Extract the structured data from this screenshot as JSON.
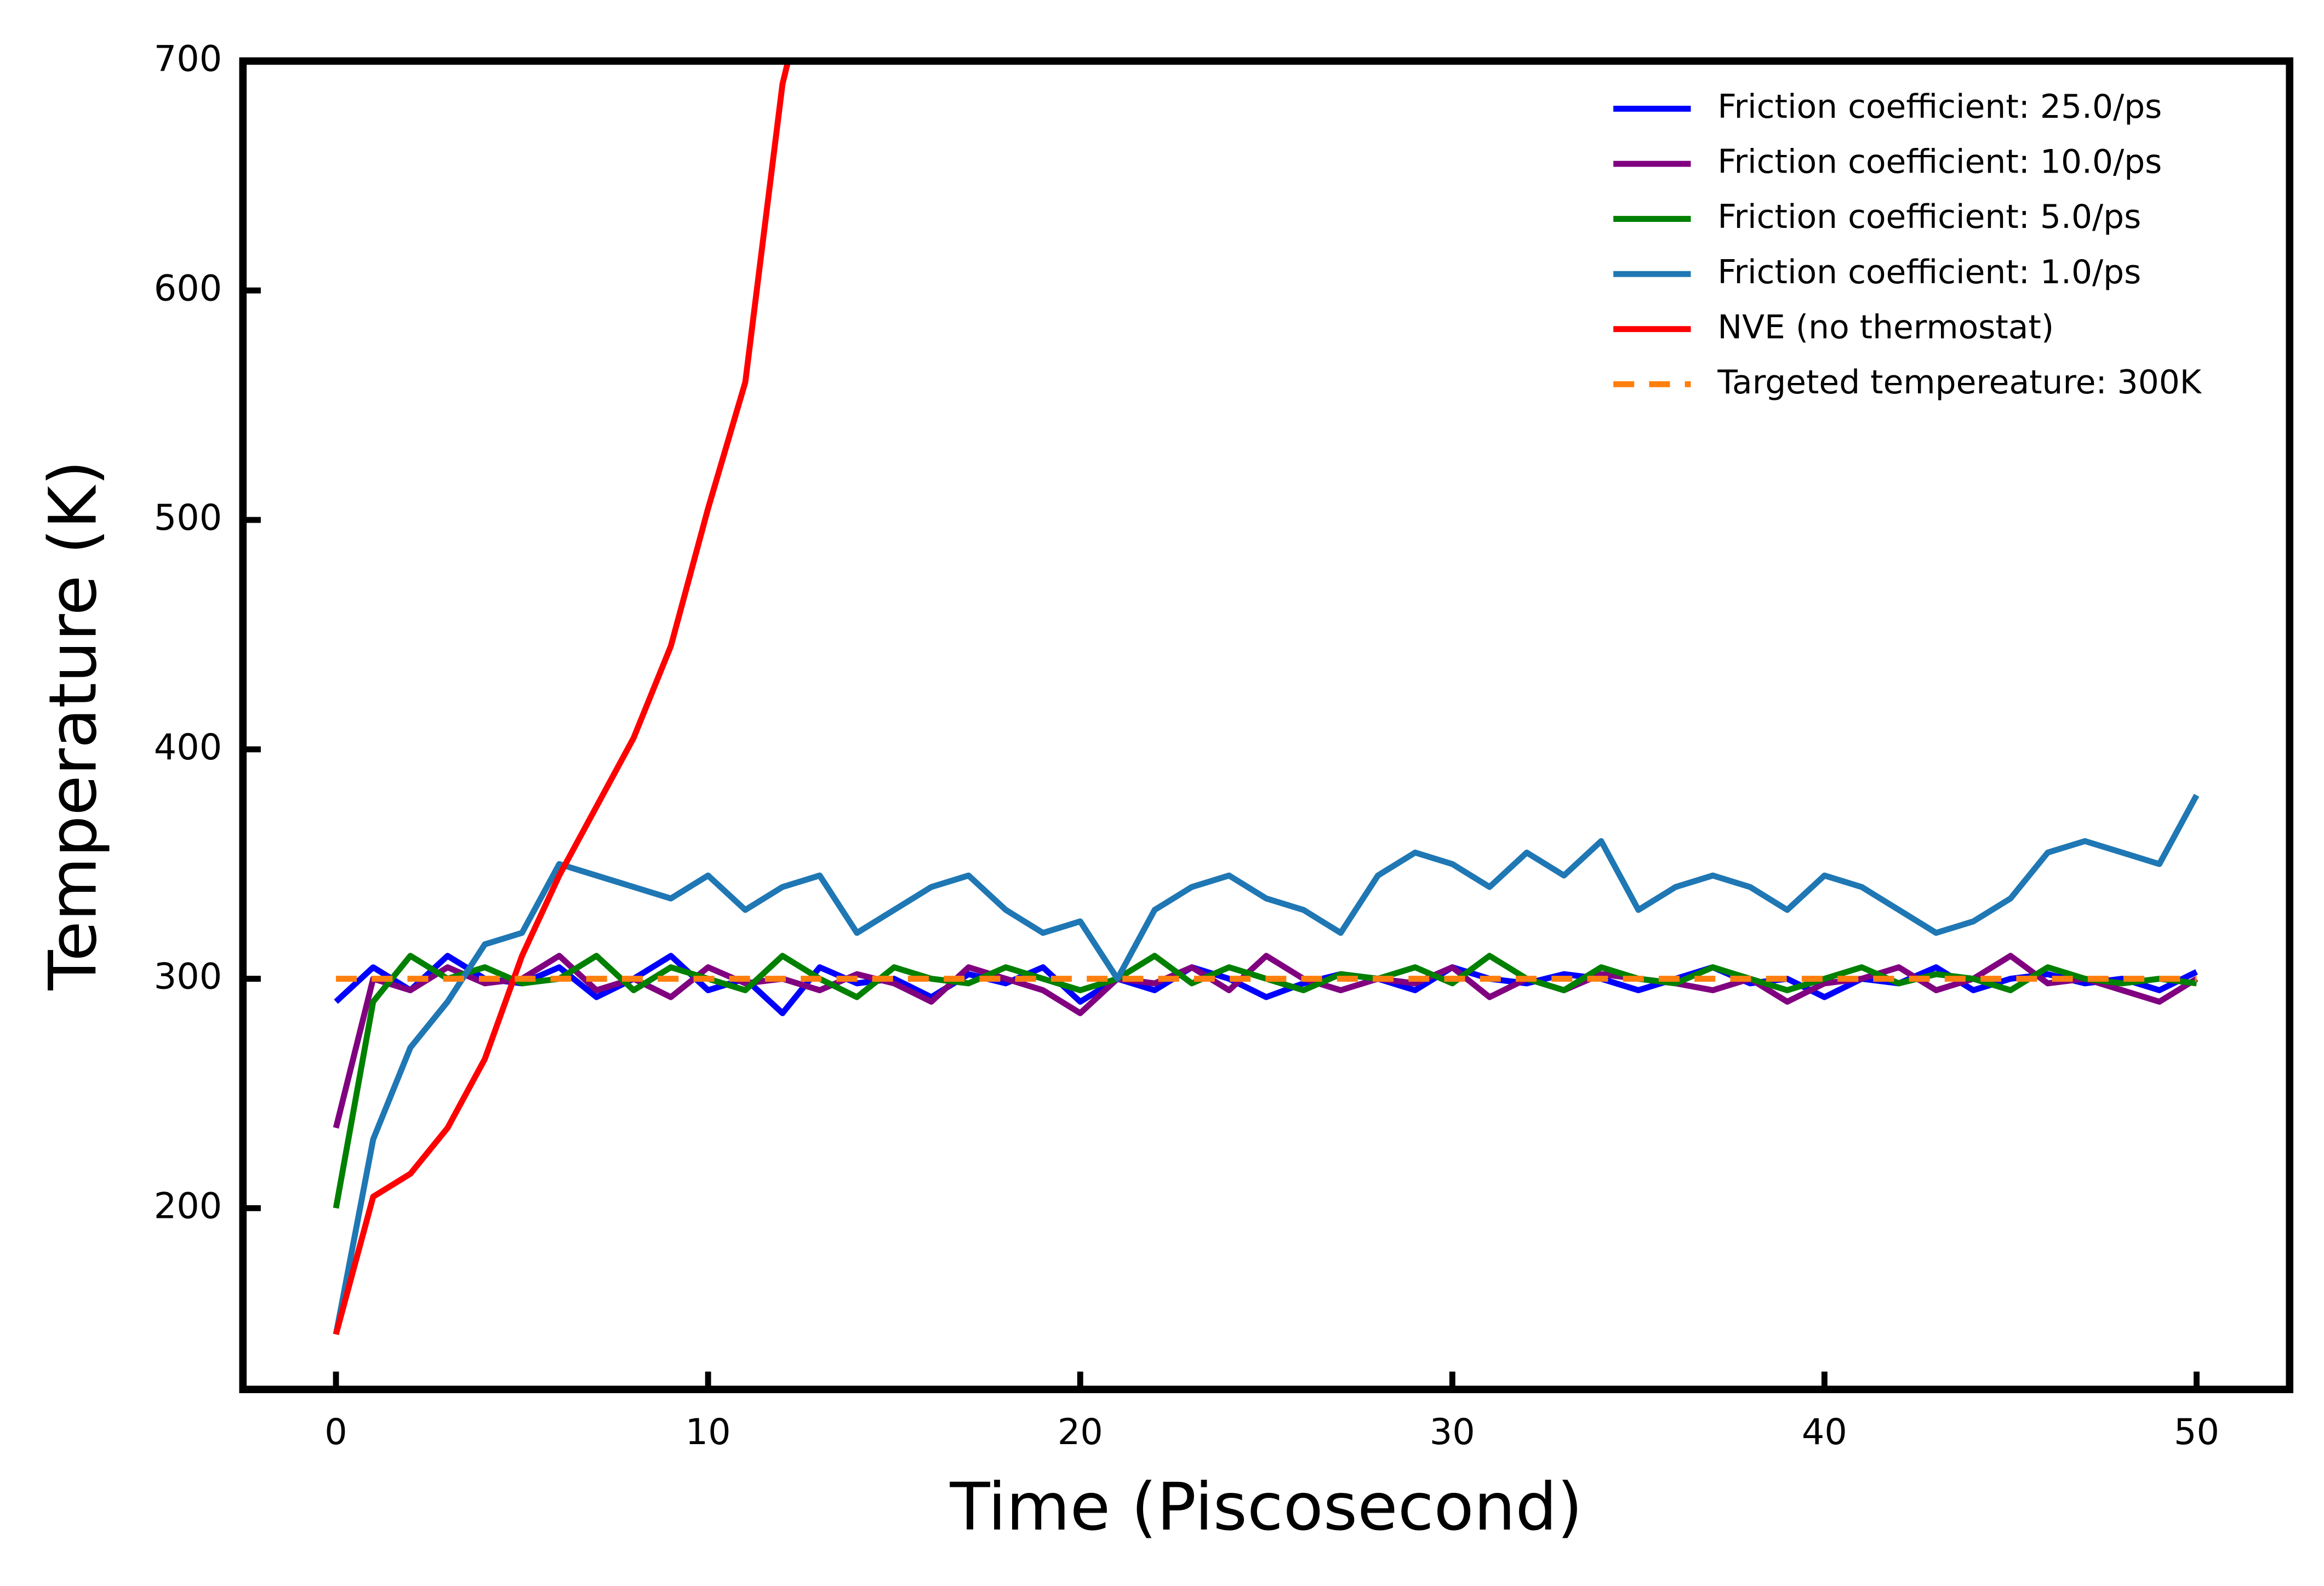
{
  "chart_data": {
    "type": "line",
    "xlabel": "Time (Piscosecond)",
    "ylabel": "Temperature (K)",
    "x": [
      0,
      1,
      2,
      3,
      4,
      5,
      6,
      7,
      8,
      9,
      10,
      11,
      12,
      13,
      14,
      15,
      16,
      17,
      18,
      19,
      20,
      21,
      22,
      23,
      24,
      25,
      26,
      27,
      28,
      29,
      30,
      31,
      32,
      33,
      34,
      35,
      36,
      37,
      38,
      39,
      40,
      41,
      42,
      43,
      44,
      45,
      46,
      47,
      48,
      49,
      50
    ],
    "xlim": [
      -2.5,
      52.5
    ],
    "ylim": [
      121,
      700
    ],
    "xticks": [
      0,
      10,
      20,
      30,
      40,
      50
    ],
    "yticks": [
      200,
      300,
      400,
      500,
      600,
      700
    ],
    "legend": "upper right",
    "series": [
      {
        "name": "Friction coefficient: 25.0/ps",
        "color": "#0000ff",
        "values": [
          290,
          305,
          295,
          310,
          300,
          298,
          305,
          292,
          300,
          310,
          295,
          300,
          285,
          305,
          298,
          300,
          292,
          302,
          298,
          305,
          290,
          300,
          295,
          305,
          300,
          292,
          298,
          302,
          300,
          295,
          305,
          300,
          298,
          302,
          300,
          295,
          300,
          305,
          298,
          300,
          292,
          300,
          298,
          305,
          295,
          300,
          302,
          298,
          300,
          295,
          303
        ]
      },
      {
        "name": "Friction coefficient: 10.0/ps",
        "color": "#800080",
        "values": [
          235,
          300,
          295,
          305,
          298,
          300,
          310,
          295,
          300,
          292,
          305,
          298,
          300,
          295,
          302,
          298,
          290,
          305,
          300,
          295,
          285,
          300,
          298,
          305,
          295,
          310,
          300,
          295,
          300,
          298,
          305,
          292,
          300,
          295,
          302,
          300,
          298,
          295,
          300,
          290,
          298,
          300,
          305,
          295,
          300,
          310,
          298,
          300,
          295,
          290,
          300
        ]
      },
      {
        "name": "Friction coefficient: 5.0/ps",
        "color": "#008000",
        "values": [
          200,
          290,
          310,
          300,
          305,
          298,
          300,
          310,
          295,
          305,
          300,
          295,
          310,
          300,
          292,
          305,
          300,
          298,
          305,
          300,
          295,
          300,
          310,
          298,
          305,
          300,
          295,
          302,
          300,
          305,
          298,
          310,
          300,
          295,
          305,
          300,
          298,
          305,
          300,
          295,
          300,
          305,
          298,
          302,
          300,
          295,
          305,
          300,
          298,
          300,
          298
        ]
      },
      {
        "name": "Friction coefficient: 1.0/ps",
        "color": "#1f77b4",
        "values": [
          145,
          230,
          270,
          290,
          315,
          320,
          350,
          345,
          340,
          335,
          345,
          330,
          340,
          345,
          320,
          330,
          340,
          345,
          330,
          320,
          325,
          300,
          330,
          340,
          345,
          335,
          330,
          320,
          345,
          355,
          350,
          340,
          355,
          345,
          360,
          330,
          340,
          345,
          340,
          330,
          345,
          340,
          330,
          320,
          325,
          335,
          355,
          360,
          355,
          350,
          380
        ]
      },
      {
        "name": "NVE (no thermostat)",
        "color": "#ff0000",
        "x": [
          0,
          1,
          2,
          3,
          4,
          5,
          6,
          7,
          8,
          9,
          10,
          11,
          12,
          12.15
        ],
        "values": [
          145,
          205,
          215,
          235,
          265,
          310,
          345,
          375,
          405,
          445,
          505,
          560,
          690,
          700
        ]
      },
      {
        "name": "Targeted tempereature: 300K",
        "color": "#ff7f0e",
        "dashed": true,
        "x": [
          0,
          50
        ],
        "values": [
          300,
          300
        ]
      }
    ]
  }
}
